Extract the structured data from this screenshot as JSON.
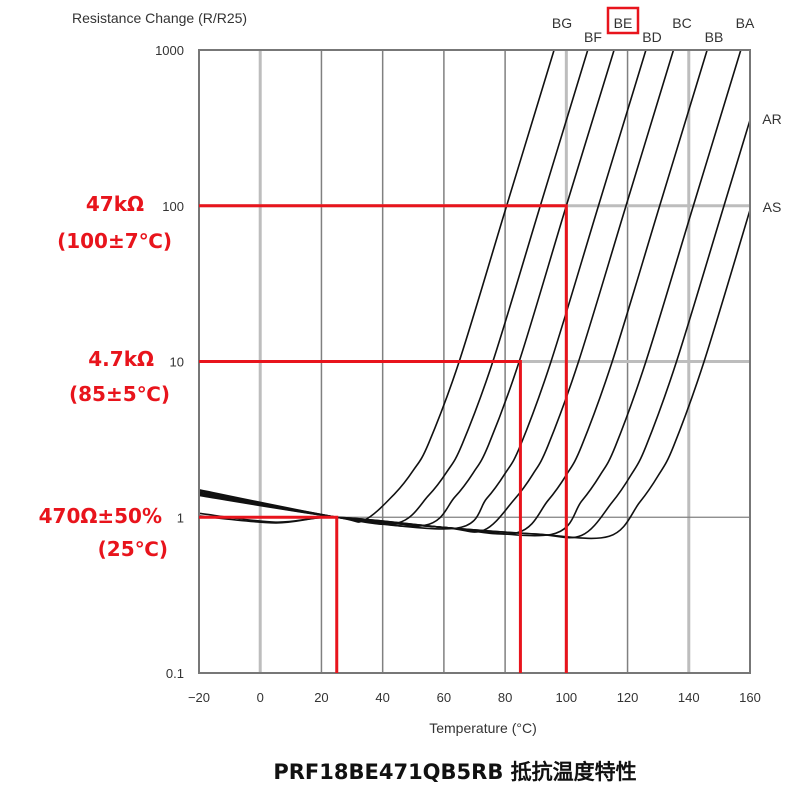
{
  "chart_data": {
    "type": "line",
    "title": "Resistance Change (R/R25)",
    "xlabel": "Temperature (°C)",
    "ylabel": "Resistance Change (R/R25)",
    "xlim": [
      -20,
      160
    ],
    "ylim": [
      0.1,
      1000
    ],
    "yscale": "log",
    "grid": true,
    "x_ticks": [
      "−20",
      "0",
      "20",
      "40",
      "60",
      "80",
      "100",
      "120",
      "140",
      "160"
    ],
    "x_tick_values": [
      -20,
      0,
      20,
      40,
      60,
      80,
      100,
      120,
      140,
      160
    ],
    "y_ticks": [
      "1000",
      "100",
      "10",
      "1",
      "0.1"
    ],
    "y_tick_values": [
      1000,
      100,
      10,
      1,
      0.1
    ],
    "series": [
      {
        "name": "BG",
        "points": [
          [
            -20,
            1.45
          ],
          [
            25,
            1
          ],
          [
            34,
            0.96
          ],
          [
            44,
            1.42
          ],
          [
            50,
            2
          ],
          [
            55,
            2.98
          ],
          [
            65,
            10
          ],
          [
            80.5,
            100
          ],
          [
            96,
            1000
          ]
        ]
      },
      {
        "name": "BF",
        "points": [
          [
            -20,
            1.5
          ],
          [
            25,
            1
          ],
          [
            45,
            0.92
          ],
          [
            55,
            1.38
          ],
          [
            61,
            1.96
          ],
          [
            66,
            2.95
          ],
          [
            76,
            10
          ],
          [
            91.5,
            100
          ],
          [
            107,
            1000
          ]
        ]
      },
      {
        "name": "BE",
        "highlight": true,
        "points": [
          [
            -20,
            1.42
          ],
          [
            25,
            1
          ],
          [
            53.6,
            0.886
          ],
          [
            63.6,
            1.35
          ],
          [
            69.6,
            1.93
          ],
          [
            74.6,
            2.92
          ],
          [
            84.6,
            10
          ],
          [
            100,
            100
          ],
          [
            115.6,
            1000
          ]
        ]
      },
      {
        "name": "BD",
        "points": [
          [
            -20,
            1.48
          ],
          [
            25,
            1
          ],
          [
            64,
            0.85
          ],
          [
            74,
            1.32
          ],
          [
            80,
            1.91
          ],
          [
            85,
            2.89
          ],
          [
            95,
            10
          ],
          [
            110.5,
            100
          ],
          [
            126,
            1000
          ]
        ]
      },
      {
        "name": "BC",
        "points": [
          [
            -20,
            1.4
          ],
          [
            25,
            1
          ],
          [
            60,
            0.86
          ],
          [
            73,
            0.825
          ],
          [
            83,
            1.3
          ],
          [
            89,
            1.88
          ],
          [
            94,
            2.88
          ],
          [
            104,
            10
          ],
          [
            119.5,
            100
          ],
          [
            135,
            1000
          ]
        ]
      },
      {
        "name": "BB",
        "points": [
          [
            -20,
            1.44
          ],
          [
            25,
            1
          ],
          [
            60,
            0.86
          ],
          [
            84,
            0.796
          ],
          [
            94,
            1.28
          ],
          [
            100,
            1.87
          ],
          [
            105,
            2.87
          ],
          [
            115,
            10
          ],
          [
            130.5,
            100
          ],
          [
            146,
            1000
          ]
        ]
      },
      {
        "name": "BA",
        "points": [
          [
            -20,
            1.38
          ],
          [
            25,
            1
          ],
          [
            60,
            0.86
          ],
          [
            95,
            0.775
          ],
          [
            105,
            1.27
          ],
          [
            111,
            1.86
          ],
          [
            116,
            2.85
          ],
          [
            126,
            10
          ],
          [
            141.5,
            100
          ],
          [
            157,
            1000
          ]
        ]
      },
      {
        "name": "AR",
        "points": [
          [
            -20,
            1.06
          ],
          [
            5,
            0.93
          ],
          [
            25,
            1
          ],
          [
            60,
            0.86
          ],
          [
            90,
            0.78
          ],
          [
            105,
            0.765
          ],
          [
            115,
            1.25
          ],
          [
            121,
            1.85
          ],
          [
            126,
            2.85
          ],
          [
            136,
            10
          ],
          [
            151.5,
            100
          ],
          [
            160,
            355
          ]
        ]
      },
      {
        "name": "AS",
        "points": [
          [
            -20,
            1.02
          ],
          [
            5,
            0.92
          ],
          [
            25,
            1
          ],
          [
            60,
            0.86
          ],
          [
            90,
            0.78
          ],
          [
            114,
            0.755
          ],
          [
            124,
            1.25
          ],
          [
            130,
            1.85
          ],
          [
            135,
            2.85
          ],
          [
            145,
            10
          ],
          [
            160,
            94
          ]
        ]
      }
    ],
    "annotations": [
      {
        "value_label": "47kΩ",
        "condition_label": "(100±7℃)",
        "T": 100,
        "R": 100
      },
      {
        "value_label": "4.7kΩ",
        "condition_label": "(85±5℃)",
        "T": 85,
        "R": 10
      },
      {
        "value_label": "470Ω±50%",
        "condition_label": "(25℃)",
        "T": 25,
        "R": 1
      }
    ],
    "colors": {
      "curve": "#111111",
      "annotation": "#e8141c",
      "grid_dark": "#808080",
      "grid_light": "#bdbdbd"
    }
  },
  "caption": "PRF18BE471QB5RB 抵抗温度特性"
}
